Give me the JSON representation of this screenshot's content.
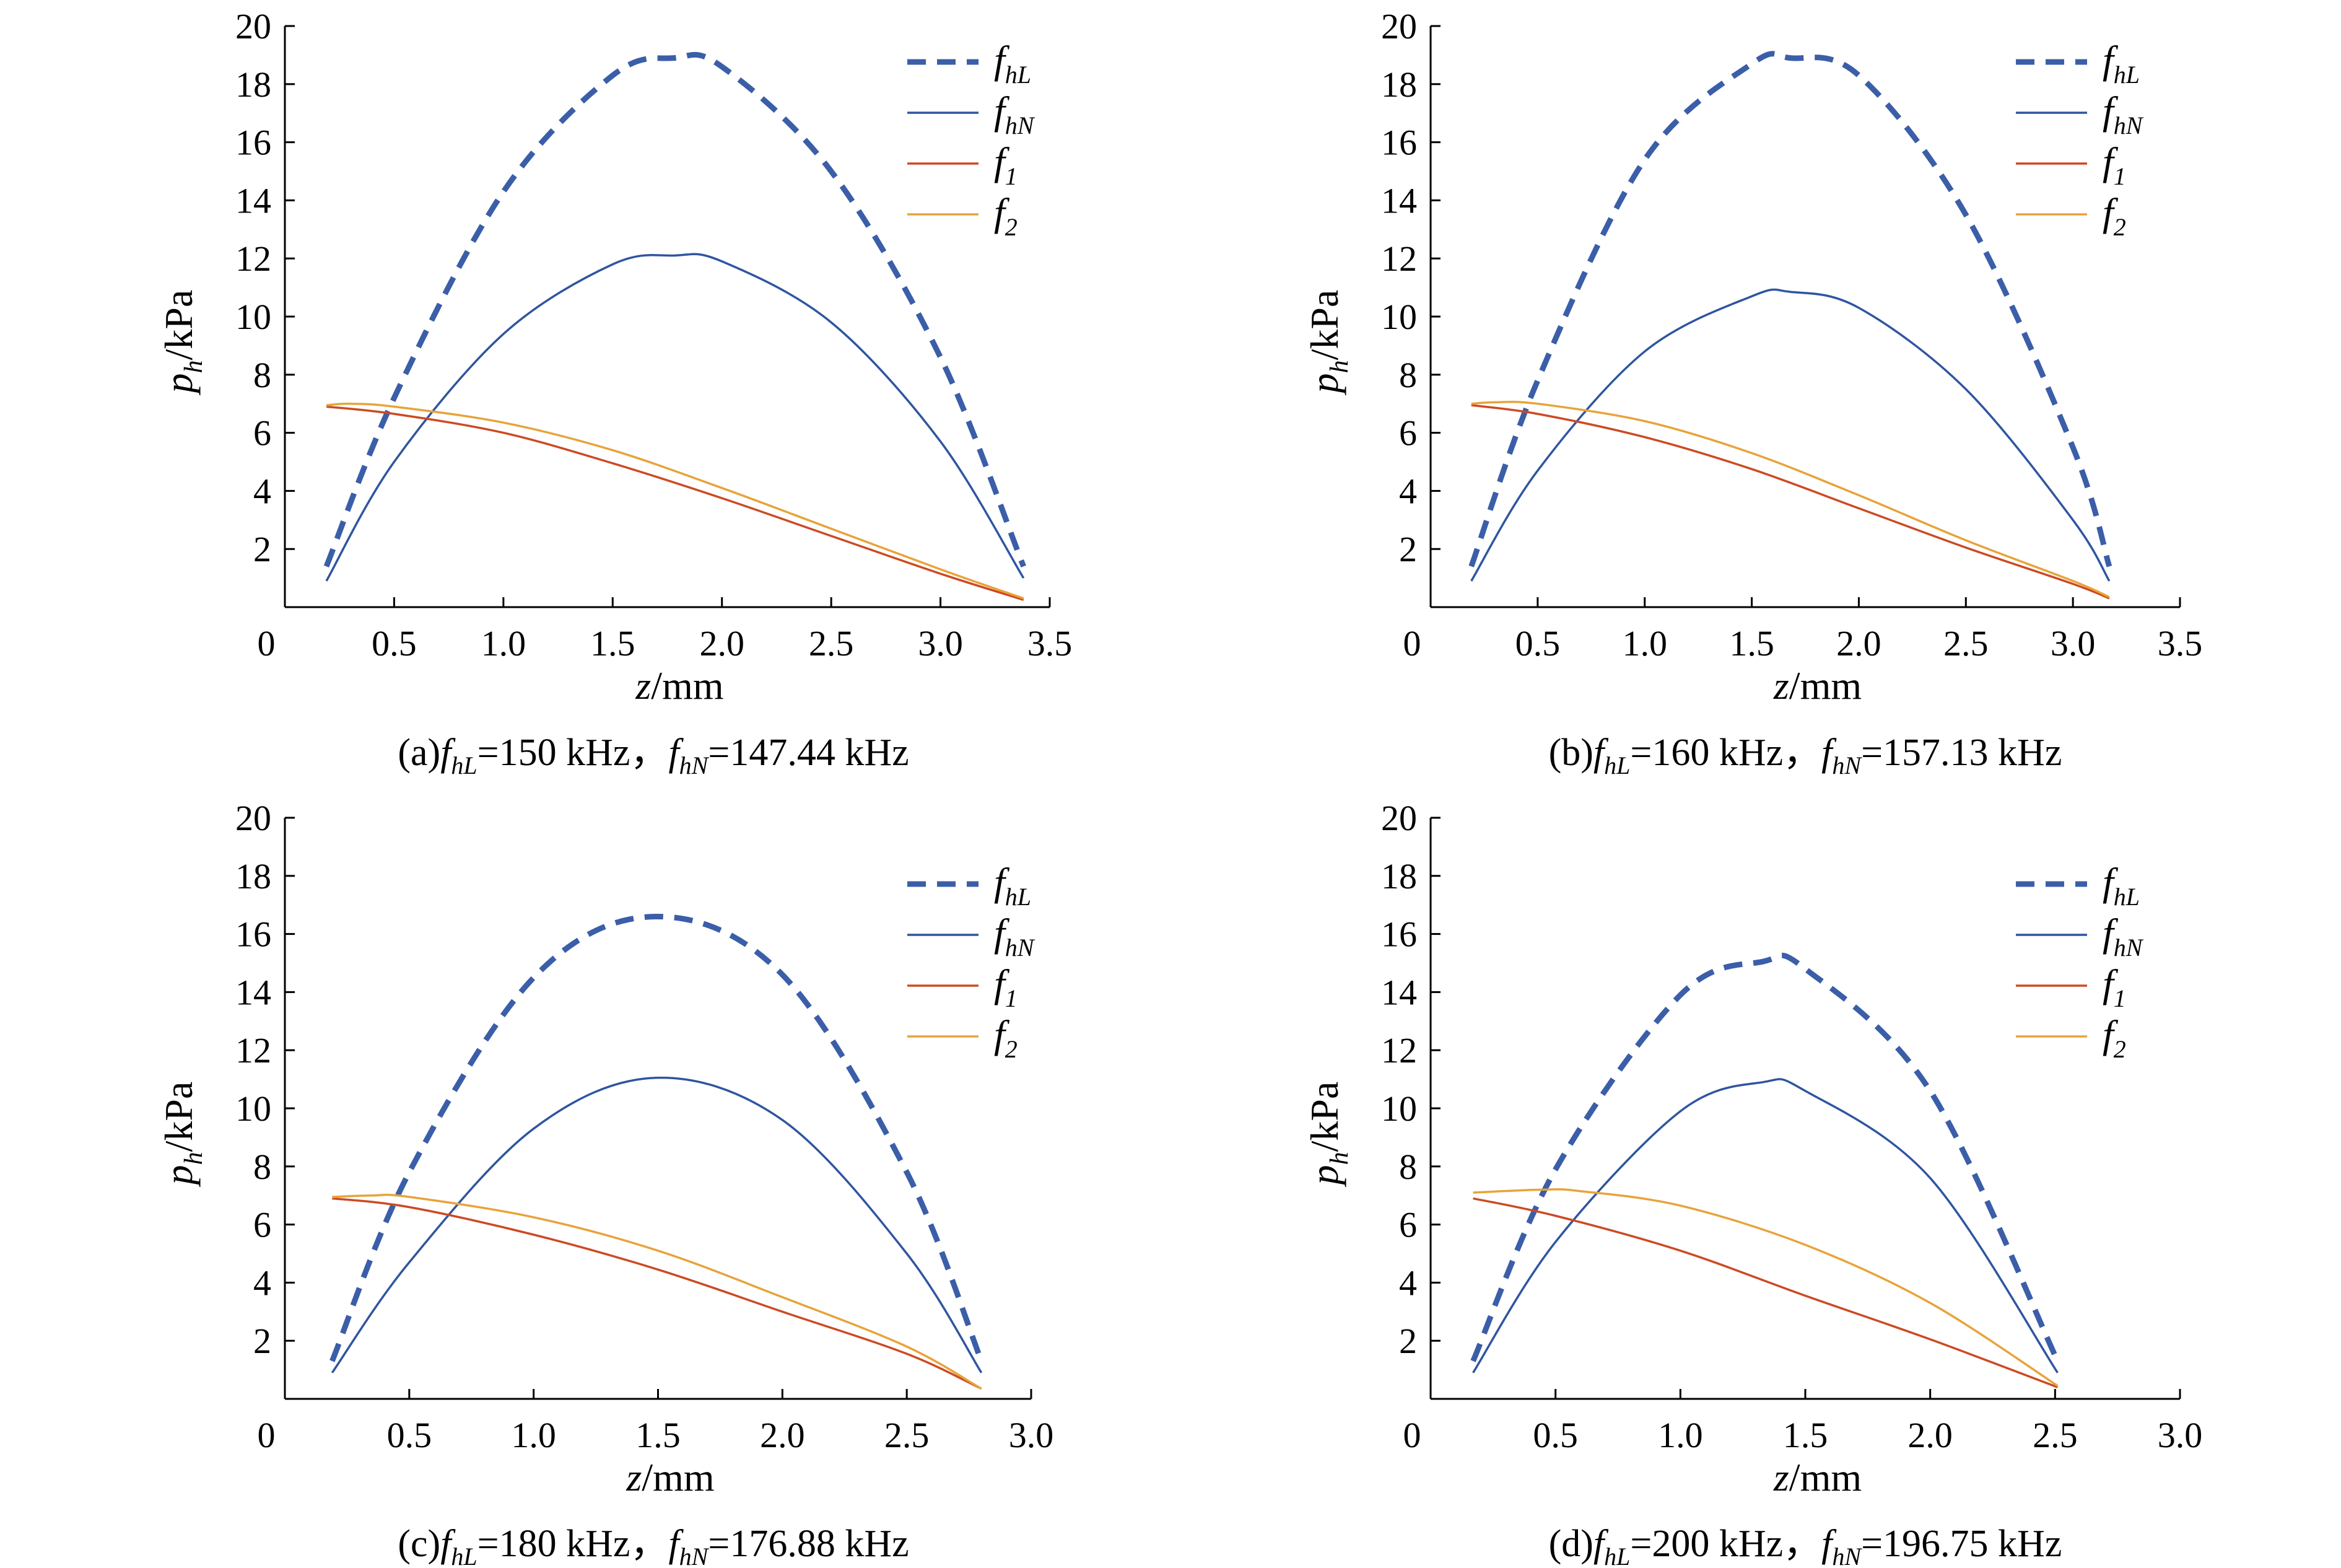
{
  "figure": {
    "series_styles": {
      "f_hL": {
        "color": "#3b5ea8",
        "dash": "dashed",
        "legend_base": "f",
        "legend_sub": "hL"
      },
      "f_hN": {
        "color": "#2f55a0",
        "dash": "solid",
        "legend_base": "f",
        "legend_sub": "hN"
      },
      "f_1": {
        "color": "#cc4a23",
        "dash": "solid",
        "legend_base": "f",
        "legend_sub": "1"
      },
      "f_2": {
        "color": "#e8a33a",
        "dash": "solid",
        "legend_base": "f",
        "legend_sub": "2"
      }
    }
  },
  "chart_data": [
    {
      "type": "line",
      "panel": "a",
      "caption": {
        "prefix": "(a)",
        "f1_base": "f",
        "f1_sub": "hL",
        "f1_value": "=150 kHz，",
        "f2_base": "f",
        "f2_sub": "hN",
        "f2_value": "=147.44 kHz"
      },
      "xlabel_italic": "z",
      "xlabel_rest": "/mm",
      "ylabel_italic": "p",
      "ylabel_sub": "h",
      "ylabel_rest": "/kPa",
      "xlim": [
        0,
        3.5
      ],
      "ylim": [
        0,
        20
      ],
      "xticks": [
        "0",
        "0.5",
        "1.0",
        "1.5",
        "2.0",
        "2.5",
        "3.0",
        "3.5"
      ],
      "yticks": [
        "2",
        "4",
        "6",
        "8",
        "10",
        "12",
        "14",
        "16",
        "18",
        "20"
      ],
      "series": [
        {
          "name": "f_hL",
          "x": [
            0.19,
            0.5,
            1.0,
            1.5,
            1.78,
            2.0,
            2.5,
            3.0,
            3.38
          ],
          "values": [
            1.4,
            7.2,
            14.3,
            18.3,
            18.9,
            18.6,
            15.0,
            8.6,
            1.4
          ]
        },
        {
          "name": "f_hN",
          "x": [
            0.19,
            0.5,
            1.0,
            1.5,
            1.78,
            2.0,
            2.5,
            3.0,
            3.38
          ],
          "values": [
            0.9,
            5.0,
            9.4,
            11.8,
            12.1,
            11.9,
            9.8,
            5.7,
            1.0
          ]
        },
        {
          "name": "f_1",
          "x": [
            0.19,
            0.5,
            1.0,
            1.5,
            2.0,
            2.5,
            3.0,
            3.38
          ],
          "values": [
            6.9,
            6.65,
            6.0,
            4.95,
            3.75,
            2.45,
            1.15,
            0.25
          ]
        },
        {
          "name": "f_2",
          "x": [
            0.19,
            0.3,
            0.5,
            1.0,
            1.5,
            2.0,
            2.5,
            3.0,
            3.38
          ],
          "values": [
            6.95,
            7.0,
            6.9,
            6.35,
            5.4,
            4.1,
            2.7,
            1.3,
            0.3
          ]
        }
      ]
    },
    {
      "type": "line",
      "panel": "b",
      "caption": {
        "prefix": "(b)",
        "f1_base": "f",
        "f1_sub": "hL",
        "f1_value": "=160 kHz，",
        "f2_base": "f",
        "f2_sub": "hN",
        "f2_value": "=157.13 kHz"
      },
      "xlabel_italic": "z",
      "xlabel_rest": "/mm",
      "ylabel_italic": "p",
      "ylabel_sub": "h",
      "ylabel_rest": "/kPa",
      "xlim": [
        0,
        3.5
      ],
      "ylim": [
        0,
        20
      ],
      "xticks": [
        "0",
        "0.5",
        "1.0",
        "1.5",
        "2.0",
        "2.5",
        "3.0",
        "3.5"
      ],
      "yticks": [
        "2",
        "4",
        "6",
        "8",
        "10",
        "12",
        "14",
        "16",
        "18",
        "20"
      ],
      "series": [
        {
          "name": "f_hL",
          "x": [
            0.19,
            0.5,
            1.0,
            1.5,
            1.68,
            2.0,
            2.5,
            3.0,
            3.17
          ],
          "values": [
            1.4,
            7.8,
            15.4,
            18.7,
            18.9,
            18.3,
            13.5,
            5.5,
            1.4
          ]
        },
        {
          "name": "f_hN",
          "x": [
            0.19,
            0.5,
            1.0,
            1.5,
            1.68,
            2.0,
            2.5,
            3.0,
            3.17
          ],
          "values": [
            0.9,
            4.7,
            8.8,
            10.7,
            10.85,
            10.3,
            7.5,
            3.0,
            0.9
          ]
        },
        {
          "name": "f_1",
          "x": [
            0.19,
            0.5,
            1.0,
            1.5,
            2.0,
            2.5,
            3.0,
            3.17
          ],
          "values": [
            6.95,
            6.65,
            5.85,
            4.75,
            3.4,
            2.05,
            0.8,
            0.3
          ]
        },
        {
          "name": "f_2",
          "x": [
            0.19,
            0.3,
            0.5,
            1.0,
            1.5,
            2.0,
            2.5,
            3.0,
            3.17
          ],
          "values": [
            7.0,
            7.05,
            7.0,
            6.4,
            5.3,
            3.85,
            2.3,
            0.9,
            0.35
          ]
        }
      ]
    },
    {
      "type": "line",
      "panel": "c",
      "caption": {
        "prefix": "(c)",
        "f1_base": "f",
        "f1_sub": "hL",
        "f1_value": "=180 kHz，",
        "f2_base": "f",
        "f2_sub": "hN",
        "f2_value": "=176.88 kHz"
      },
      "xlabel_italic": "z",
      "xlabel_rest": "/mm",
      "ylabel_italic": "p",
      "ylabel_sub": "h",
      "ylabel_rest": "/kPa",
      "xlim": [
        0,
        3.0
      ],
      "ylim": [
        0,
        20
      ],
      "xticks": [
        "0",
        "0.5",
        "1.0",
        "1.5",
        "2.0",
        "2.5",
        "3.0"
      ],
      "yticks": [
        "2",
        "4",
        "6",
        "8",
        "10",
        "12",
        "14",
        "16",
        "18",
        "20"
      ],
      "series": [
        {
          "name": "f_hL",
          "x": [
            0.19,
            0.5,
            1.0,
            1.49,
            2.0,
            2.5,
            2.8
          ],
          "values": [
            1.3,
            7.8,
            14.5,
            16.6,
            14.6,
            7.8,
            1.3
          ]
        },
        {
          "name": "f_hN",
          "x": [
            0.19,
            0.5,
            1.0,
            1.49,
            2.0,
            2.5,
            2.8
          ],
          "values": [
            0.9,
            4.7,
            9.3,
            11.05,
            9.6,
            5.0,
            0.9
          ]
        },
        {
          "name": "f_1",
          "x": [
            0.19,
            0.5,
            1.0,
            1.5,
            2.0,
            2.5,
            2.8
          ],
          "values": [
            6.9,
            6.6,
            5.65,
            4.45,
            3.0,
            1.55,
            0.35
          ]
        },
        {
          "name": "f_2",
          "x": [
            0.19,
            0.35,
            0.5,
            1.0,
            1.5,
            2.0,
            2.5,
            2.8
          ],
          "values": [
            6.95,
            7.0,
            6.95,
            6.25,
            5.1,
            3.5,
            1.8,
            0.35
          ]
        }
      ]
    },
    {
      "type": "line",
      "panel": "d",
      "caption": {
        "prefix": "(d)",
        "f1_base": "f",
        "f1_sub": "hL",
        "f1_value": "=200 kHz，",
        "f2_base": "f",
        "f2_sub": "hN",
        "f2_value": "=196.75 kHz"
      },
      "xlabel_italic": "z",
      "xlabel_rest": "/mm",
      "ylabel_italic": "p",
      "ylabel_sub": "h",
      "ylabel_rest": "/kPa",
      "xlim": [
        0,
        3.0
      ],
      "ylim": [
        0,
        20
      ],
      "xticks": [
        "0",
        "0.5",
        "1.0",
        "1.5",
        "2.0",
        "2.5",
        "3.0"
      ],
      "yticks": [
        "2",
        "4",
        "6",
        "8",
        "10",
        "12",
        "14",
        "16",
        "18",
        "20"
      ],
      "series": [
        {
          "name": "f_hL",
          "x": [
            0.17,
            0.5,
            1.0,
            1.33,
            1.5,
            2.0,
            2.51
          ],
          "values": [
            1.3,
            7.9,
            13.9,
            15.05,
            14.8,
            10.6,
            1.3
          ]
        },
        {
          "name": "f_hN",
          "x": [
            0.17,
            0.5,
            1.0,
            1.33,
            1.5,
            2.0,
            2.51
          ],
          "values": [
            0.9,
            5.4,
            9.9,
            10.9,
            10.6,
            7.6,
            0.9
          ]
        },
        {
          "name": "f_1",
          "x": [
            0.17,
            0.5,
            1.0,
            1.5,
            2.0,
            2.51
          ],
          "values": [
            6.9,
            6.3,
            5.1,
            3.55,
            2.05,
            0.4
          ]
        },
        {
          "name": "f_2",
          "x": [
            0.17,
            0.45,
            0.6,
            1.0,
            1.5,
            2.0,
            2.51
          ],
          "values": [
            7.1,
            7.2,
            7.15,
            6.65,
            5.3,
            3.3,
            0.45
          ]
        }
      ]
    }
  ]
}
